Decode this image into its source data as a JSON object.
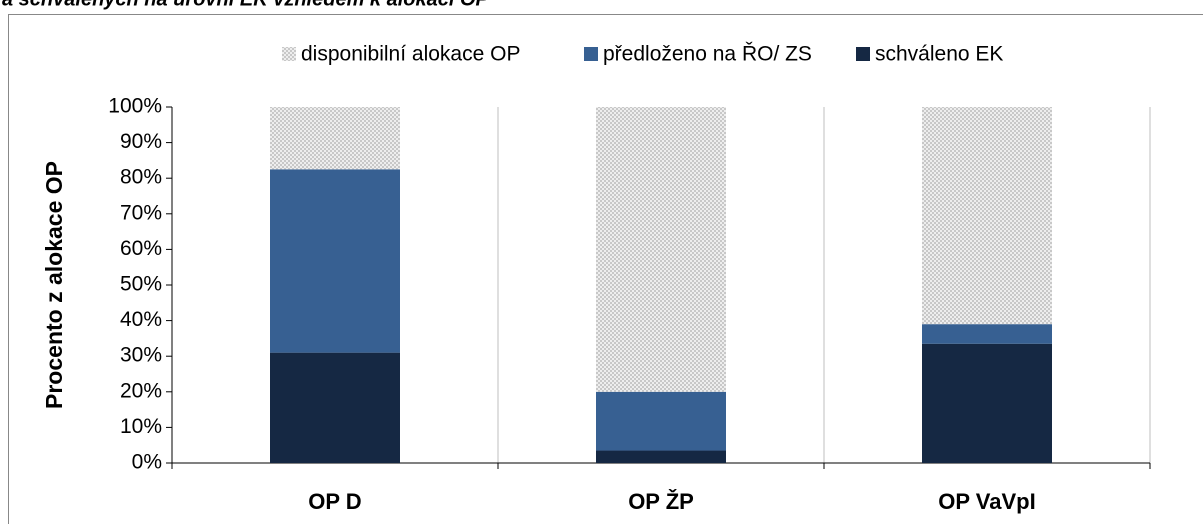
{
  "chart_data": {
    "type": "stacked_bar",
    "title": "a schválených na úrovni EK vzhledem k alokaci OP",
    "y_label": "Procento z alokace OP",
    "categories": [
      "OP D",
      "OP ŽP",
      "OP VaVpI"
    ],
    "series": [
      {
        "name": "disponibilní alokace OP",
        "color": "#d9d9d9",
        "values": [
          17.5,
          80,
          61
        ]
      },
      {
        "name": "předloženo na ŘO/ ZS",
        "color": "#376092",
        "values": [
          51.5,
          16.5,
          5.5
        ]
      },
      {
        "name": "schváleno EK",
        "color": "#152843",
        "values": [
          31,
          3.5,
          33.5
        ]
      }
    ],
    "ylim": [
      0,
      100
    ],
    "yticks": [
      {
        "value": 0,
        "label": "0%"
      },
      {
        "value": 10,
        "label": "10%"
      },
      {
        "value": 20,
        "label": "20%"
      },
      {
        "value": 30,
        "label": "30%"
      },
      {
        "value": 40,
        "label": "40%"
      },
      {
        "value": 50,
        "label": "50%"
      },
      {
        "value": 60,
        "label": "60%"
      },
      {
        "value": 70,
        "label": "70%"
      },
      {
        "value": 80,
        "label": "80%"
      },
      {
        "value": 90,
        "label": "90%"
      },
      {
        "value": 100,
        "label": "100%"
      }
    ],
    "legend": "top"
  }
}
